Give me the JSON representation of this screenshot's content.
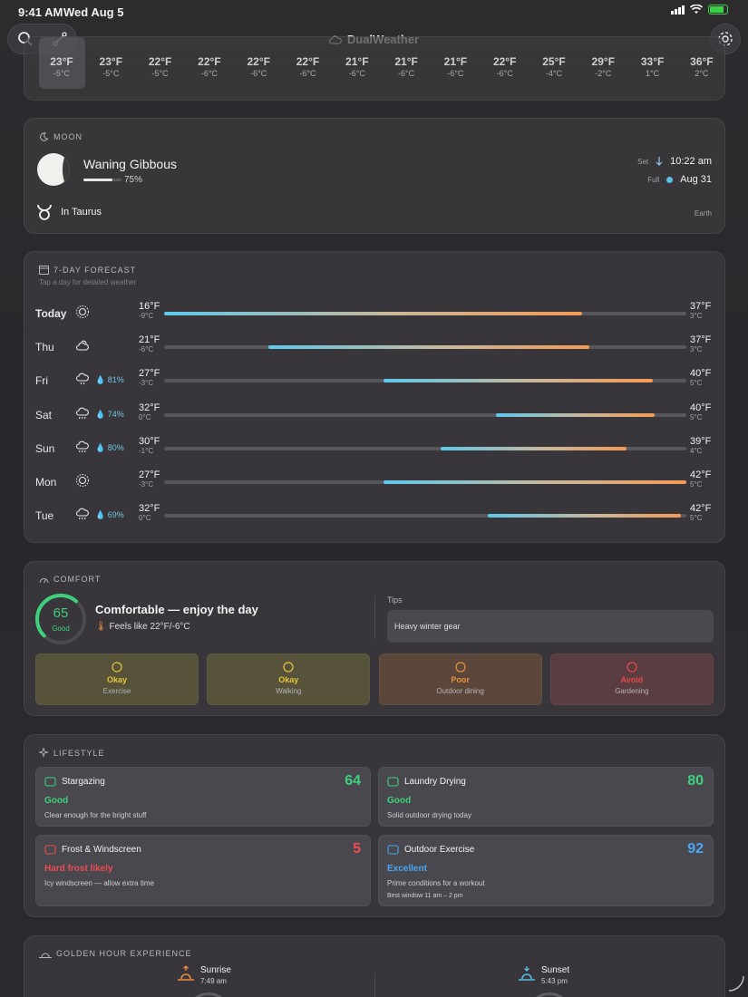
{
  "status": {
    "time": "9:41 AM",
    "date": "Wed Aug 5"
  },
  "app": {
    "title": "DualWeather"
  },
  "hourly": [
    {
      "f": "23°F",
      "c": "-5°C"
    },
    {
      "f": "23°F",
      "c": "-5°C"
    },
    {
      "f": "22°F",
      "c": "-5°C"
    },
    {
      "f": "22°F",
      "c": "-6°C"
    },
    {
      "f": "22°F",
      "c": "-6°C"
    },
    {
      "f": "22°F",
      "c": "-6°C"
    },
    {
      "f": "21°F",
      "c": "-6°C"
    },
    {
      "f": "21°F",
      "c": "-6°C"
    },
    {
      "f": "21°F",
      "c": "-6°C"
    },
    {
      "f": "22°F",
      "c": "-6°C"
    },
    {
      "f": "25°F",
      "c": "-4°C"
    },
    {
      "f": "29°F",
      "c": "-2°C"
    },
    {
      "f": "33°F",
      "c": "1°C"
    },
    {
      "f": "36°F",
      "c": "2°C"
    }
  ],
  "moon": {
    "label": "MOON",
    "phase": "Waning Gibbous",
    "illumination": "75%",
    "illumination_fraction": 0.75,
    "sign": "In Taurus",
    "set_label": "Set",
    "set_time": "10:22 am",
    "full_label": "Full",
    "full_date": "Aug 31",
    "reference": "Earth"
  },
  "forecast": {
    "label": "7-DAY FORECAST",
    "subtitle": "Tap a day for detailed weather",
    "days": [
      {
        "name": "Today",
        "icon": "sun-icon",
        "precip": "",
        "lo_f": "16°F",
        "lo_c": "-9°C",
        "hi_f": "37°F",
        "hi_c": "3°C",
        "start": 0.0,
        "end": 0.8
      },
      {
        "name": "Thu",
        "icon": "partly-cloudy-icon",
        "precip": "",
        "lo_f": "21°F",
        "lo_c": "-6°C",
        "hi_f": "37°F",
        "hi_c": "3°C",
        "start": 0.2,
        "end": 0.815
      },
      {
        "name": "Fri",
        "icon": "snow-icon",
        "precip": "81%",
        "lo_f": "27°F",
        "lo_c": "-3°C",
        "hi_f": "40°F",
        "hi_c": "5°C",
        "start": 0.42,
        "end": 0.935
      },
      {
        "name": "Sat",
        "icon": "rain-icon",
        "precip": "74%",
        "lo_f": "32°F",
        "lo_c": "0°C",
        "hi_f": "40°F",
        "hi_c": "5°C",
        "start": 0.635,
        "end": 0.94
      },
      {
        "name": "Sun",
        "icon": "rain-icon",
        "precip": "80%",
        "lo_f": "30°F",
        "lo_c": "-1°C",
        "hi_f": "39°F",
        "hi_c": "4°C",
        "start": 0.53,
        "end": 0.885
      },
      {
        "name": "Mon",
        "icon": "sun-icon",
        "precip": "",
        "lo_f": "27°F",
        "lo_c": "-3°C",
        "hi_f": "42°F",
        "hi_c": "5°C",
        "start": 0.42,
        "end": 1.0
      },
      {
        "name": "Tue",
        "icon": "rain-icon",
        "precip": "69%",
        "lo_f": "32°F",
        "lo_c": "0°C",
        "hi_f": "42°F",
        "hi_c": "5°C",
        "start": 0.62,
        "end": 0.99
      }
    ]
  },
  "comfort": {
    "label": "COMFORT",
    "score": "65",
    "score_fraction": 0.65,
    "grade": "Good",
    "headline": "Comfortable — enjoy the day",
    "feels": "Feels like 22°F/-6°C",
    "tips_label": "Tips",
    "tip": "Heavy winter gear",
    "activities": [
      {
        "status": "Okay",
        "name": "Exercise",
        "icon": "exercise-icon",
        "color": "#e7c53a",
        "bg": "#57523a"
      },
      {
        "status": "Okay",
        "name": "Walking",
        "icon": "walking-icon",
        "color": "#e7c53a",
        "bg": "#57523a"
      },
      {
        "status": "Poor",
        "name": "Outdoor dining",
        "icon": "dining-icon",
        "color": "#ee8f3d",
        "bg": "#5a473a"
      },
      {
        "status": "Avoid",
        "name": "Gardening",
        "icon": "gardening-icon",
        "color": "#e8484c",
        "bg": "#5a3d40"
      }
    ]
  },
  "lifestyle": {
    "label": "LIFESTYLE",
    "items": [
      {
        "title": "Stargazing",
        "score": "64",
        "grade": "Good",
        "desc": "Clear enough for the bright stuff",
        "window": "",
        "icon": "telescope-icon",
        "color": "#3fd07c"
      },
      {
        "title": "Laundry Drying",
        "score": "80",
        "grade": "Good",
        "desc": "Solid outdoor drying today",
        "window": "",
        "icon": "laundry-icon",
        "color": "#3fd07c"
      },
      {
        "title": "Frost & Windscreen",
        "score": "5",
        "grade": "Hard frost likely",
        "desc": "Icy windscreen — allow extra time",
        "window": "",
        "icon": "frost-icon",
        "color": "#ee4b50"
      },
      {
        "title": "Outdoor Exercise",
        "score": "92",
        "grade": "Excellent",
        "desc": "Prime conditions for a workout",
        "window": "Best window 11 am – 2 pm",
        "icon": "running-shoe-icon",
        "color": "#4aa6f2"
      }
    ]
  },
  "golden": {
    "label": "GOLDEN HOUR EXPERIENCE",
    "sunrise_label": "Sunrise",
    "sunrise_time": "7:49 am",
    "sunset_label": "Sunset",
    "sunset_time": "5:43 pm"
  }
}
